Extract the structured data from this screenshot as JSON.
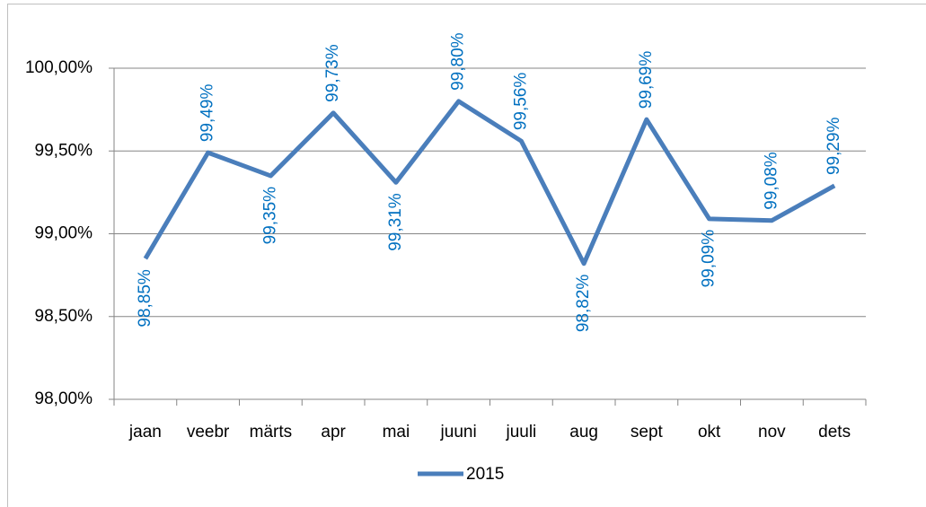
{
  "chart_data": {
    "type": "line",
    "categories": [
      "jaan",
      "veebr",
      "märts",
      "apr",
      "mai",
      "juuni",
      "juuli",
      "aug",
      "sept",
      "okt",
      "nov",
      "dets"
    ],
    "series": [
      {
        "name": "2015",
        "color": "#4a7ebb",
        "values": [
          98.85,
          99.49,
          99.35,
          99.73,
          99.31,
          99.8,
          99.56,
          98.82,
          99.69,
          99.09,
          99.08,
          99.29
        ],
        "value_labels": [
          "98,85%",
          "99,49%",
          "99,35%",
          "99,73%",
          "99,31%",
          "99,80%",
          "99,56%",
          "98,82%",
          "99,69%",
          "99,09%",
          "99,08%",
          "99,29%"
        ]
      }
    ],
    "ylim": [
      98,
      100
    ],
    "yticks": [
      {
        "value": 98,
        "label": "98,00%"
      },
      {
        "value": 98.5,
        "label": "98,50%"
      },
      {
        "value": 99,
        "label": "99,00%"
      },
      {
        "value": 99.5,
        "label": "99,50%"
      },
      {
        "value": 100,
        "label": "100,00%"
      }
    ],
    "grid": true,
    "legend": "bottom",
    "label_color": "#0070c0"
  }
}
